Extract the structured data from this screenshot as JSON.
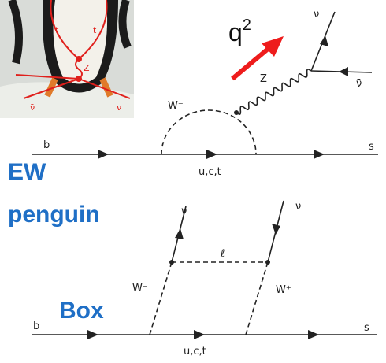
{
  "penguin_photo": {
    "labels": [
      "t",
      "t",
      "Z",
      "ν̄",
      "ν"
    ]
  },
  "momentum": {
    "symbol": "q",
    "power": "2"
  },
  "penguin_diagram": {
    "name_lines": [
      "EW",
      "penguin"
    ],
    "quark_in": "b",
    "quark_out": "s",
    "loop_quarks": "u,c,t",
    "loop_boson": "W⁻",
    "neutral_boson": "Z",
    "neutrino": "ν",
    "antineutrino": "ν̄"
  },
  "box_diagram": {
    "name": "Box",
    "quark_in": "b",
    "quark_out": "s",
    "loop_quarks": "u,c,t",
    "boson_left": "W⁻",
    "boson_right": "W⁺",
    "lepton": "ℓ",
    "neutrino": "ν",
    "antineutrino": "ν̄"
  }
}
